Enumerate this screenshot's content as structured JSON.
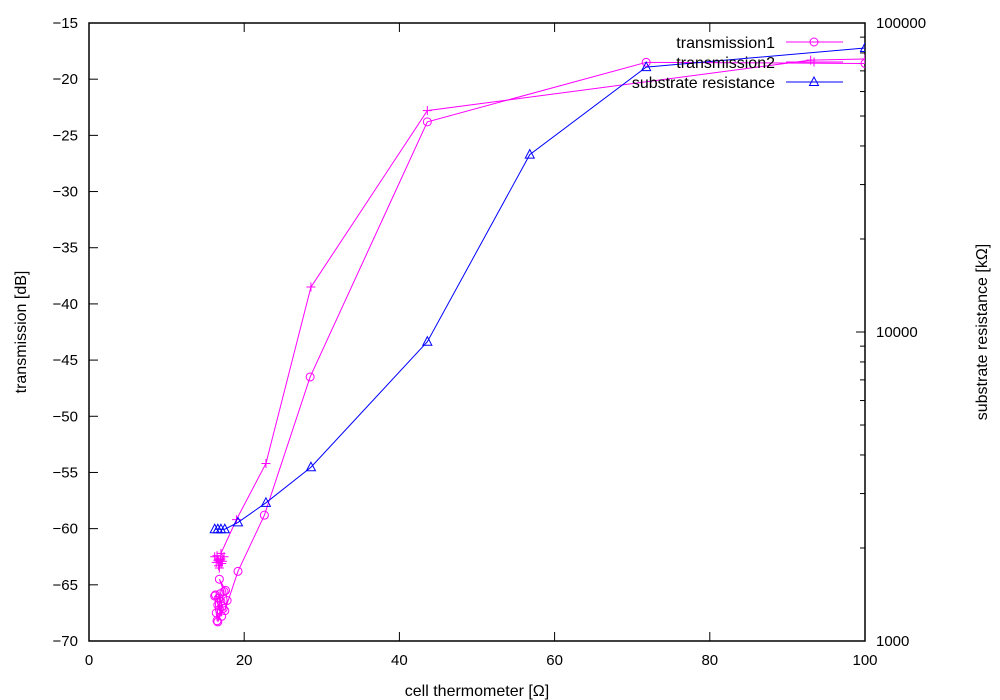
{
  "chart_data": {
    "type": "line",
    "xlabel": "cell thermometer [Ω]",
    "ylabel": "transmission [dB]",
    "y2label": "substrate resistance [kΩ]",
    "xlim": [
      0,
      100
    ],
    "ylim": [
      -70,
      -15
    ],
    "y2lim": [
      1000,
      100000
    ],
    "y2scale": "log",
    "grid": false,
    "legend_position": "top-right",
    "x_ticks": [
      0,
      20,
      40,
      60,
      80,
      100
    ],
    "y_ticks": [
      -70,
      -65,
      -60,
      -55,
      -50,
      -45,
      -40,
      -35,
      -30,
      -25,
      -20,
      -15
    ],
    "y2_ticks": [
      1000,
      10000,
      100000
    ],
    "y2_tick_labels": [
      "1000",
      "10000",
      "100000"
    ],
    "series": [
      {
        "name": "transmission1",
        "axis": "left",
        "marker": "circle",
        "color": "#ff00ff",
        "points": [
          [
            16.2,
            -66.0
          ],
          [
            16.4,
            -67.5
          ],
          [
            16.5,
            -68.2
          ],
          [
            16.6,
            -66.8
          ],
          [
            16.8,
            -67.2
          ],
          [
            16.9,
            -65.8
          ],
          [
            17.0,
            -66.5
          ],
          [
            17.1,
            -67.8
          ],
          [
            16.3,
            -65.9
          ],
          [
            16.7,
            -66.2
          ],
          [
            17.2,
            -66.9
          ],
          [
            17.3,
            -67.1
          ],
          [
            16.6,
            -68.3
          ],
          [
            17.4,
            -65.6
          ],
          [
            16.8,
            -64.5
          ],
          [
            17.6,
            -65.5
          ],
          [
            17.8,
            -66.4
          ],
          [
            17.5,
            -67.3
          ],
          [
            19.2,
            -63.8
          ],
          [
            22.6,
            -58.8
          ],
          [
            28.5,
            -46.5
          ],
          [
            43.6,
            -23.8
          ],
          [
            71.8,
            -18.5
          ],
          [
            100.0,
            -18.6
          ]
        ]
      },
      {
        "name": "transmission2",
        "axis": "left",
        "marker": "plus",
        "color": "#ff00ff",
        "points": [
          [
            16.2,
            -62.5
          ],
          [
            16.4,
            -63.0
          ],
          [
            16.6,
            -62.8
          ],
          [
            16.7,
            -63.3
          ],
          [
            16.9,
            -62.9
          ],
          [
            17.0,
            -62.7
          ],
          [
            17.1,
            -63.1
          ],
          [
            16.5,
            -62.4
          ],
          [
            16.8,
            -63.5
          ],
          [
            17.2,
            -62.9
          ],
          [
            17.4,
            -62.5
          ],
          [
            17.0,
            -62.2
          ],
          [
            19.0,
            -59.2
          ],
          [
            22.8,
            -54.2
          ],
          [
            28.6,
            -38.5
          ],
          [
            43.6,
            -22.8
          ],
          [
            93.0,
            -18.3
          ],
          [
            100.0,
            -18.2
          ]
        ]
      },
      {
        "name": "substrate resistance",
        "axis": "right",
        "marker": "triangle",
        "color": "#0000ff",
        "points": [
          [
            16.2,
            2300
          ],
          [
            16.6,
            2300
          ],
          [
            17.0,
            2300
          ],
          [
            17.5,
            2300
          ],
          [
            19.2,
            2420
          ],
          [
            22.8,
            2800
          ],
          [
            28.6,
            3650
          ],
          [
            43.6,
            9300
          ],
          [
            56.8,
            37500
          ],
          [
            71.8,
            72000
          ],
          [
            100.0,
            83000
          ]
        ]
      }
    ]
  }
}
